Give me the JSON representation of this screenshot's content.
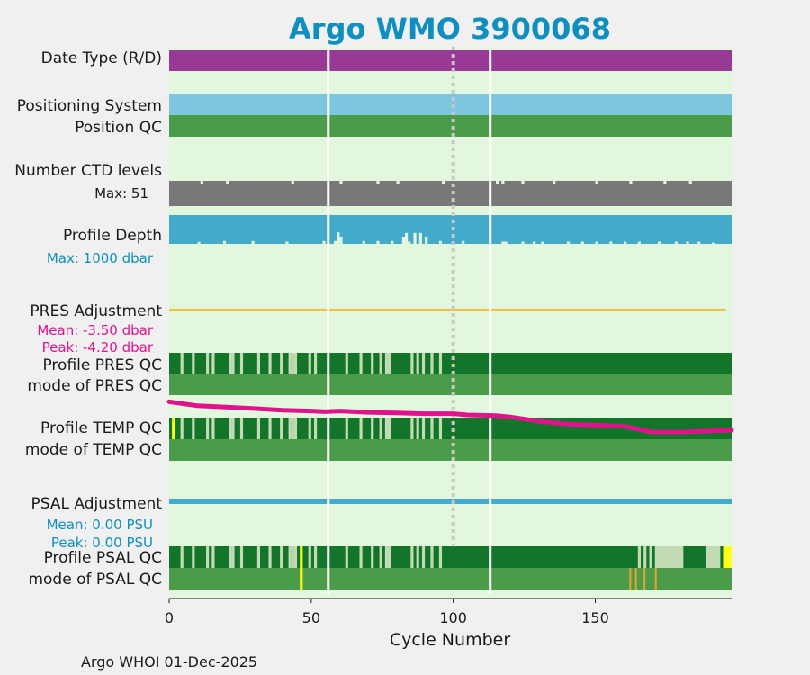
{
  "chart_data": {
    "type": "bar",
    "title": "Argo WMO 3900068",
    "xlabel": "Cycle Number",
    "xlim": [
      0,
      198
    ],
    "xticks": [
      0,
      50,
      100,
      150
    ],
    "cycle_gaps": [
      56,
      113
    ],
    "reference_line_x": 100,
    "footer": "Argo WHOI 01-Dec-2025",
    "rows": {
      "date_type": {
        "label": "Date Type (R/D)"
      },
      "positioning": {
        "label": "Positioning System"
      },
      "position_qc": {
        "label": "Position QC"
      },
      "ctd_levels": {
        "label": "Number CTD levels",
        "max_text": "Max: 51",
        "max": 51,
        "short_cycles": [
          11,
          20,
          43,
          60,
          73,
          80,
          96,
          115,
          117,
          124,
          135,
          150,
          162,
          174,
          183
        ]
      },
      "profile_depth": {
        "label": "Profile Depth",
        "max_text": "Max: 1000 dbar",
        "max_dbar": 1000,
        "notches": [
          [
            10,
            0.93
          ],
          [
            19,
            0.9
          ],
          [
            29,
            0.9
          ],
          [
            41,
            0.92
          ],
          [
            54,
            0.9
          ],
          [
            58,
            0.9
          ],
          [
            59,
            0.6
          ],
          [
            60,
            0.75
          ],
          [
            68,
            0.9
          ],
          [
            73,
            0.9
          ],
          [
            78,
            0.9
          ],
          [
            82,
            0.75
          ],
          [
            83,
            0.62
          ],
          [
            84,
            0.92
          ],
          [
            86,
            0.62
          ],
          [
            88,
            0.62
          ],
          [
            90,
            0.75
          ],
          [
            95,
            0.9
          ],
          [
            103,
            0.9
          ],
          [
            117,
            0.92
          ],
          [
            118,
            0.92
          ],
          [
            124,
            0.92
          ],
          [
            128,
            0.92
          ],
          [
            131,
            0.92
          ],
          [
            140,
            0.92
          ],
          [
            145,
            0.92
          ],
          [
            150,
            0.92
          ],
          [
            155,
            0.92
          ],
          [
            160,
            0.92
          ],
          [
            165,
            0.92
          ],
          [
            172,
            0.92
          ],
          [
            178,
            0.92
          ],
          [
            182,
            0.92
          ],
          [
            186,
            0.92
          ],
          [
            191,
            0.96
          ]
        ]
      },
      "pres_adjustment": {
        "label": "PRES Adjustment",
        "mean_text": "Mean: -3.50 dbar",
        "peak_text": "Peak: -4.20 dbar",
        "mean_dbar": -3.5,
        "peak_dbar": -4.2
      },
      "pres_qc": {
        "label": "Profile PRES QC",
        "light_cycles": [
          4,
          8,
          13,
          15,
          21,
          22,
          25,
          31,
          35,
          39,
          42,
          43,
          44,
          49,
          51,
          62,
          67,
          71,
          74,
          76,
          77,
          85,
          87,
          89,
          92,
          95
        ]
      },
      "pres_mode": {
        "label": "mode of PRES QC"
      },
      "temp_qc": {
        "label": "Profile TEMP QC",
        "light_cycles": [
          4,
          8,
          13,
          15,
          21,
          22,
          25,
          31,
          35,
          39,
          42,
          43,
          44,
          49,
          51,
          62,
          67,
          71,
          74,
          76,
          77,
          85,
          87,
          89,
          92,
          95
        ],
        "yellow_cycles": [
          1
        ]
      },
      "temp_mode": {
        "label": "mode of TEMP QC"
      },
      "psal_adjustment": {
        "label": "PSAL Adjustment",
        "mean_text": "Mean: 0.00 PSU",
        "peak_text": "Peak: 0.00 PSU",
        "mean_psu": 0.0,
        "peak_psu": 0.0
      },
      "psal_qc": {
        "label": "Profile PSAL QC",
        "light_cycles": [
          4,
          8,
          13,
          15,
          21,
          22,
          25,
          31,
          35,
          39,
          42,
          43,
          44,
          49,
          51,
          62,
          67,
          71,
          74,
          76,
          77,
          85,
          87,
          89,
          92,
          95,
          165,
          167,
          169
        ],
        "light_ranges": [
          [
            171,
            181
          ],
          [
            189,
            194
          ]
        ],
        "yellow_cycles": [
          46
        ],
        "yellow_ranges": [
          [
            195,
            198
          ]
        ]
      },
      "psal_mode": {
        "label": "mode of PSAL QC",
        "yellow_cycles": [
          46
        ],
        "orange_cycles": [
          162,
          164,
          167,
          171
        ]
      }
    },
    "temp_overlay": {
      "series_name": "temperature trend",
      "color": "#e0138c",
      "x": [
        0,
        10,
        20,
        30,
        40,
        50,
        55,
        60,
        70,
        80,
        90,
        100,
        105,
        110,
        115,
        120,
        130,
        140,
        150,
        160,
        170,
        180,
        190,
        198
      ],
      "y": [
        0.98,
        0.78,
        0.72,
        0.64,
        0.56,
        0.52,
        0.48,
        0.52,
        0.45,
        0.42,
        0.38,
        0.38,
        0.32,
        0.3,
        0.28,
        0.22,
        0.0,
        -0.15,
        -0.2,
        -0.25,
        -0.55,
        -0.55,
        -0.5,
        -0.45
      ],
      "ylim": [
        -1,
        1
      ]
    },
    "colors": {
      "background": "#e3f7de",
      "date_type": "#983a95",
      "positioning": "#7ec5e0",
      "qc_good": "#4a9c48",
      "qc_profile": "#137529",
      "qc_light": "#c2dbb4",
      "ctd": "#787878",
      "depth": "#43aacc",
      "pres_adj": "#f0c040",
      "psal_adj": "#43aacc",
      "yellow": "#ffff1a",
      "orange": "#e8a32a",
      "title": "#0f8fbf",
      "accent_text": "#0f8fbf",
      "pres_text": "#e0138c"
    }
  }
}
